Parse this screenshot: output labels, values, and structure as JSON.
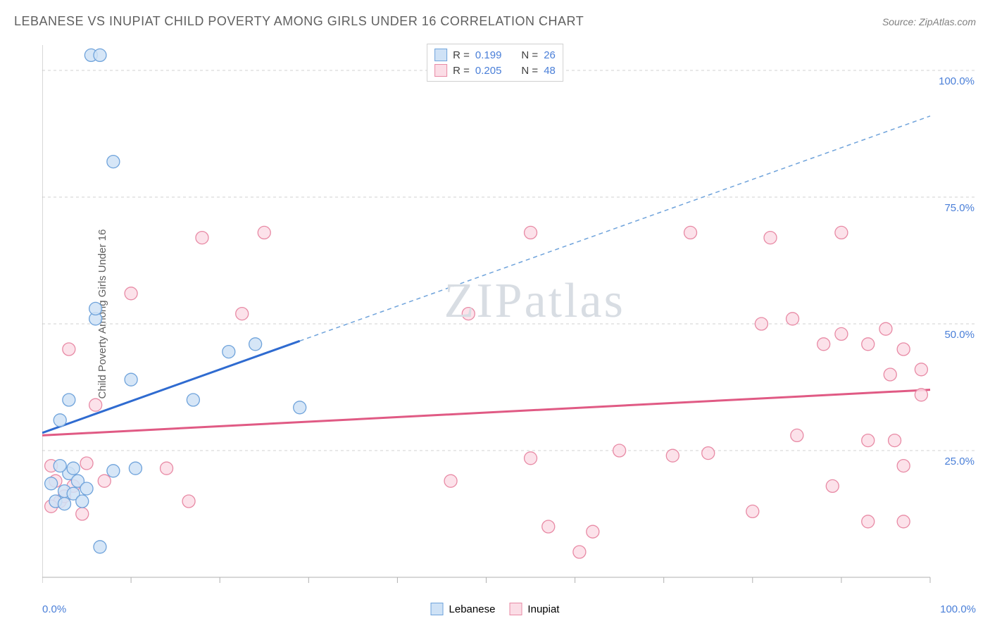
{
  "title": "LEBANESE VS INUPIAT CHILD POVERTY AMONG GIRLS UNDER 16 CORRELATION CHART",
  "source": "Source: ZipAtlas.com",
  "y_axis_label": "Child Poverty Among Girls Under 16",
  "watermark": "ZIPatlas",
  "chart": {
    "type": "scatter",
    "xlim": [
      0,
      100
    ],
    "ylim": [
      0,
      105
    ],
    "y_ticks": [
      25,
      50,
      75,
      100
    ],
    "y_tick_labels": [
      "25.0%",
      "50.0%",
      "75.0%",
      "100.0%"
    ],
    "x_min_label": "0.0%",
    "x_max_label": "100.0%",
    "x_tick_positions": [
      0,
      10,
      20,
      30,
      40,
      50,
      60,
      70,
      80,
      90,
      100
    ],
    "background_color": "#ffffff",
    "grid_color": "#d0d0d0",
    "axis_color": "#b0b0b0",
    "series": [
      {
        "name": "Lebanese",
        "marker_fill": "#cfe2f6",
        "marker_stroke": "#6fa3db",
        "marker_radius": 9,
        "line_color": "#2f6bd0",
        "line_width": 3,
        "dash_color": "#6fa3db",
        "trend_start": {
          "x": 0,
          "y": 28.5
        },
        "trend_end": {
          "x": 100,
          "y": 91
        },
        "solid_until_x": 29,
        "R": "0.199",
        "N": "26",
        "points": [
          {
            "x": 5.5,
            "y": 103
          },
          {
            "x": 6.5,
            "y": 103
          },
          {
            "x": 8,
            "y": 82
          },
          {
            "x": 6,
            "y": 51
          },
          {
            "x": 6,
            "y": 53
          },
          {
            "x": 10,
            "y": 39
          },
          {
            "x": 17,
            "y": 35
          },
          {
            "x": 21,
            "y": 44.5
          },
          {
            "x": 24,
            "y": 46
          },
          {
            "x": 29,
            "y": 33.5
          },
          {
            "x": 3,
            "y": 35
          },
          {
            "x": 2,
            "y": 31
          },
          {
            "x": 1,
            "y": 18.5
          },
          {
            "x": 1.5,
            "y": 15
          },
          {
            "x": 2.5,
            "y": 17
          },
          {
            "x": 3,
            "y": 20.5
          },
          {
            "x": 3.5,
            "y": 16.5
          },
          {
            "x": 4,
            "y": 19
          },
          {
            "x": 4.5,
            "y": 15
          },
          {
            "x": 5,
            "y": 17.5
          },
          {
            "x": 2,
            "y": 22
          },
          {
            "x": 3.5,
            "y": 21.5
          },
          {
            "x": 8,
            "y": 21
          },
          {
            "x": 10.5,
            "y": 21.5
          },
          {
            "x": 6.5,
            "y": 6
          },
          {
            "x": 2.5,
            "y": 14.5
          }
        ]
      },
      {
        "name": "Inupiat",
        "marker_fill": "#fbdde6",
        "marker_stroke": "#e88aa5",
        "marker_radius": 9,
        "line_color": "#e05a84",
        "line_width": 3,
        "trend_start": {
          "x": 0,
          "y": 28
        },
        "trend_end": {
          "x": 100,
          "y": 37
        },
        "solid_until_x": 100,
        "R": "0.205",
        "N": "48",
        "points": [
          {
            "x": 3,
            "y": 45
          },
          {
            "x": 10,
            "y": 56
          },
          {
            "x": 18,
            "y": 67
          },
          {
            "x": 22.5,
            "y": 52
          },
          {
            "x": 25,
            "y": 68
          },
          {
            "x": 48,
            "y": 52
          },
          {
            "x": 55,
            "y": 68
          },
          {
            "x": 73,
            "y": 68
          },
          {
            "x": 82,
            "y": 67
          },
          {
            "x": 90,
            "y": 68
          },
          {
            "x": 81,
            "y": 50
          },
          {
            "x": 84.5,
            "y": 51
          },
          {
            "x": 90,
            "y": 48
          },
          {
            "x": 88,
            "y": 46
          },
          {
            "x": 93,
            "y": 46
          },
          {
            "x": 95,
            "y": 49
          },
          {
            "x": 97,
            "y": 45
          },
          {
            "x": 95.5,
            "y": 40
          },
          {
            "x": 99,
            "y": 41
          },
          {
            "x": 99,
            "y": 36
          },
          {
            "x": 85,
            "y": 28
          },
          {
            "x": 93,
            "y": 27
          },
          {
            "x": 96,
            "y": 27
          },
          {
            "x": 71,
            "y": 24
          },
          {
            "x": 75,
            "y": 24.5
          },
          {
            "x": 65,
            "y": 25
          },
          {
            "x": 55,
            "y": 23.5
          },
          {
            "x": 46,
            "y": 19
          },
          {
            "x": 57,
            "y": 10
          },
          {
            "x": 62,
            "y": 9
          },
          {
            "x": 60.5,
            "y": 5
          },
          {
            "x": 80,
            "y": 13
          },
          {
            "x": 89,
            "y": 18
          },
          {
            "x": 93,
            "y": 11
          },
          {
            "x": 97,
            "y": 11
          },
          {
            "x": 97,
            "y": 22
          },
          {
            "x": 6,
            "y": 34
          },
          {
            "x": 14,
            "y": 21.5
          },
          {
            "x": 16.5,
            "y": 15
          },
          {
            "x": 1,
            "y": 22
          },
          {
            "x": 1.5,
            "y": 19
          },
          {
            "x": 2,
            "y": 15
          },
          {
            "x": 4.5,
            "y": 12.5
          },
          {
            "x": 1,
            "y": 14
          },
          {
            "x": 5,
            "y": 22.5
          },
          {
            "x": 3.5,
            "y": 18
          },
          {
            "x": 7,
            "y": 19
          },
          {
            "x": 2.5,
            "y": 16
          }
        ]
      }
    ]
  },
  "legend_top": [
    {
      "swatch_fill": "#cfe2f6",
      "swatch_stroke": "#6fa3db",
      "r_label": "R =",
      "r_val": "0.199",
      "n_label": "N =",
      "n_val": "26"
    },
    {
      "swatch_fill": "#fbdde6",
      "swatch_stroke": "#e88aa5",
      "r_label": "R =",
      "r_val": "0.205",
      "n_label": "N =",
      "n_val": "48"
    }
  ],
  "legend_bottom": [
    {
      "swatch_fill": "#cfe2f6",
      "swatch_stroke": "#6fa3db",
      "label": "Lebanese"
    },
    {
      "swatch_fill": "#fbdde6",
      "swatch_stroke": "#e88aa5",
      "label": "Inupiat"
    }
  ]
}
